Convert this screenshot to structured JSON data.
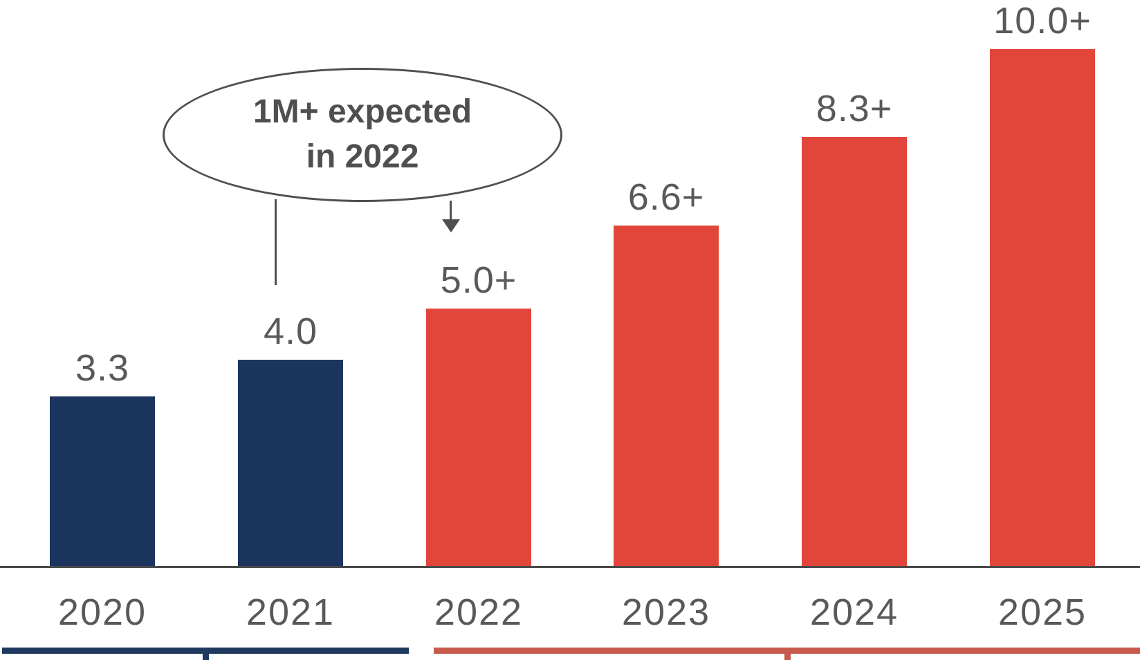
{
  "chart_data": {
    "type": "bar",
    "title": "",
    "xlabel": "",
    "ylabel": "",
    "categories": [
      "2020",
      "2021",
      "2022",
      "2023",
      "2024",
      "2025"
    ],
    "values": [
      3.3,
      4.0,
      5.0,
      6.6,
      8.3,
      10.0
    ],
    "value_labels": [
      "3.3",
      "4.0",
      "5.0+",
      "6.6+",
      "8.3+",
      "10.0+"
    ],
    "bar_colors": [
      "#1b355e",
      "#1b355e",
      "#e2463b",
      "#e2463b",
      "#e2463b",
      "#e2463b"
    ],
    "ylim": [
      0,
      10.5
    ],
    "grid": false,
    "legend": false,
    "axis": {
      "baseline_color": "#4a4a4a",
      "label_color": "#595959"
    },
    "group_brackets": [
      {
        "span": [
          "2020",
          "2021"
        ],
        "color": "#1f3a5e"
      },
      {
        "span": [
          "2022",
          "2025"
        ],
        "color": "#c75a4d"
      }
    ]
  },
  "annotation": {
    "line1": "1M+ expected",
    "line2": "in 2022",
    "stroke_color": "#4f4f4f",
    "points_to": [
      "2021",
      "2022"
    ]
  }
}
